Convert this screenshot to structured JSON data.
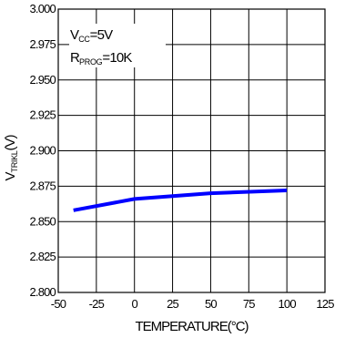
{
  "chart_data": {
    "type": "line",
    "title": "",
    "xlabel": "TEMPERATURE(°C)",
    "ylabel": {
      "main": "V",
      "sub": "TRIKL",
      "unit": "(V)"
    },
    "xlim": [
      -50,
      125
    ],
    "ylim": [
      2.8,
      3.0
    ],
    "x_ticks": [
      -50,
      -25,
      0,
      25,
      50,
      75,
      100,
      125
    ],
    "x_tick_labels": [
      "-50",
      "-25",
      "0",
      "25",
      "50",
      "75",
      "100",
      "125"
    ],
    "y_ticks": [
      2.8,
      2.825,
      2.85,
      2.875,
      2.9,
      2.925,
      2.95,
      2.975,
      3.0
    ],
    "y_tick_labels": [
      "2.800",
      "2.825",
      "2.850",
      "2.875",
      "2.900",
      "2.925",
      "2.950",
      "2.975",
      "3.000"
    ],
    "grid": true,
    "series": [
      {
        "color": "#0000ff",
        "x": [
          -40,
          0,
          50,
          100
        ],
        "y": [
          2.858,
          2.866,
          2.87,
          2.872
        ]
      }
    ],
    "annotations": [
      {
        "main": "V",
        "sub": "CC",
        "rest": "=5V"
      },
      {
        "main": "R",
        "sub": "PROG",
        "rest": "=10K"
      }
    ]
  }
}
